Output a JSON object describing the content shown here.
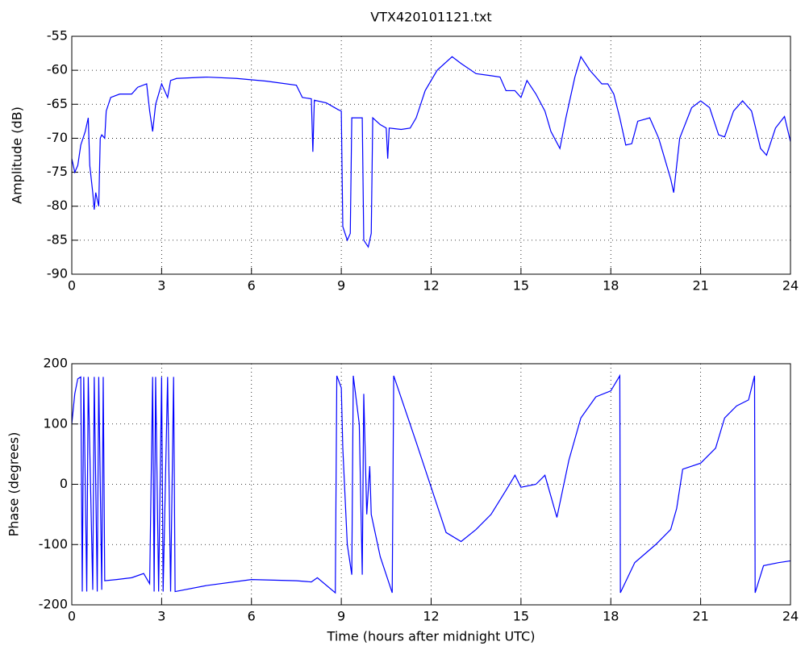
{
  "chart_data": [
    {
      "type": "line",
      "title": "VTX420101121.txt",
      "y_label": "Amplitude (dB)",
      "color": "#0000ff",
      "grid": true,
      "xlim": [
        0,
        24
      ],
      "xticks": [
        0,
        3,
        6,
        9,
        12,
        15,
        18,
        21,
        24
      ],
      "ylim": [
        -90,
        -55
      ],
      "yticks": [
        -90,
        -85,
        -80,
        -75,
        -70,
        -65,
        -60,
        -55
      ],
      "x": [
        0,
        0.1,
        0.2,
        0.3,
        0.45,
        0.55,
        0.6,
        0.7,
        0.75,
        0.8,
        0.9,
        0.95,
        1.0,
        1.1,
        1.15,
        1.3,
        1.6,
        2.0,
        2.2,
        2.5,
        2.6,
        2.7,
        2.8,
        3.0,
        3.2,
        3.3,
        3.5,
        4.5,
        5.5,
        6.5,
        7.5,
        7.7,
        8.0,
        8.05,
        8.1,
        8.5,
        8.9,
        9.0,
        9.05,
        9.2,
        9.3,
        9.35,
        9.7,
        9.75,
        9.9,
        10.0,
        10.05,
        10.3,
        10.5,
        10.55,
        10.6,
        11.0,
        11.3,
        11.5,
        11.8,
        12.2,
        12.7,
        13.0,
        13.5,
        14.0,
        14.3,
        14.5,
        14.8,
        15.0,
        15.2,
        15.5,
        15.8,
        16.0,
        16.3,
        16.5,
        16.8,
        17.0,
        17.3,
        17.7,
        17.9,
        18.1,
        18.3,
        18.5,
        18.7,
        18.9,
        19.3,
        19.6,
        19.8,
        20.0,
        20.1,
        20.3,
        20.7,
        21.0,
        21.3,
        21.6,
        21.8,
        22.1,
        22.4,
        22.7,
        23.0,
        23.2,
        23.5,
        23.8,
        24.0
      ],
      "values": [
        -73,
        -75,
        -74,
        -71,
        -69,
        -67,
        -74,
        -78,
        -80.5,
        -78,
        -80,
        -70,
        -69.5,
        -70,
        -66,
        -64,
        -63.5,
        -63.5,
        -62.5,
        -62,
        -66,
        -69,
        -65,
        -62,
        -64,
        -61.5,
        -61.2,
        -61,
        -61.2,
        -61.6,
        -62.2,
        -64,
        -64.2,
        -72,
        -64.4,
        -64.8,
        -65.8,
        -66,
        -83,
        -85,
        -84,
        -67,
        -67,
        -85,
        -86,
        -84,
        -67,
        -68,
        -68.5,
        -73,
        -68.5,
        -68.7,
        -68.5,
        -67,
        -63,
        -60,
        -58,
        -59,
        -60.5,
        -60.8,
        -61,
        -63,
        -63,
        -64,
        -61.5,
        -63.5,
        -66,
        -69,
        -71.5,
        -67,
        -61,
        -58,
        -60,
        -62,
        -62,
        -63.5,
        -67,
        -71,
        -70.8,
        -67.5,
        -67,
        -70,
        -73,
        -76,
        -78,
        -70,
        -65.5,
        -64.5,
        -65.5,
        -69.5,
        -69.8,
        -66,
        -64.5,
        -66,
        -71.5,
        -72.5,
        -68.5,
        -66.8,
        -70.5
      ]
    },
    {
      "type": "line",
      "x_label": "Time (hours after midnight UTC)",
      "y_label": "Phase (degrees)",
      "color": "#0000ff",
      "grid": true,
      "xlim": [
        0,
        24
      ],
      "xticks": [
        0,
        3,
        6,
        9,
        12,
        15,
        18,
        21,
        24
      ],
      "ylim": [
        -200,
        200
      ],
      "yticks": [
        -200,
        -100,
        0,
        100,
        200
      ],
      "x": [
        0,
        0.1,
        0.2,
        0.3,
        0.35,
        0.4,
        0.5,
        0.55,
        0.7,
        0.75,
        0.85,
        0.9,
        1.0,
        1.05,
        1.1,
        1.5,
        2.0,
        2.4,
        2.6,
        2.7,
        2.75,
        2.8,
        2.9,
        3.0,
        3.05,
        3.2,
        3.3,
        3.4,
        3.45,
        4.5,
        6.0,
        7.5,
        8.0,
        8.2,
        8.8,
        8.85,
        9.0,
        9.05,
        9.2,
        9.35,
        9.4,
        9.6,
        9.7,
        9.75,
        9.85,
        9.95,
        10.0,
        10.3,
        10.7,
        10.75,
        11.5,
        12.0,
        12.5,
        13.0,
        13.5,
        14.0,
        14.5,
        14.8,
        15.0,
        15.5,
        15.8,
        16.0,
        16.2,
        16.6,
        17.0,
        17.5,
        18.0,
        18.3,
        18.32,
        18.8,
        19.5,
        20.0,
        20.2,
        20.4,
        21.0,
        21.5,
        21.8,
        22.2,
        22.6,
        22.8,
        22.82,
        23.1,
        23.6,
        24.0
      ],
      "values": [
        100,
        150,
        175,
        178,
        -178,
        178,
        -178,
        178,
        -175,
        178,
        -178,
        178,
        -175,
        178,
        -160,
        -158,
        -155,
        -148,
        -165,
        178,
        -178,
        178,
        -178,
        178,
        -178,
        178,
        -178,
        178,
        -178,
        -168,
        -158,
        -160,
        -162,
        -155,
        -180,
        180,
        160,
        60,
        -100,
        -150,
        180,
        100,
        -150,
        150,
        -50,
        30,
        -50,
        -120,
        -180,
        180,
        70,
        -5,
        -80,
        -95,
        -75,
        -50,
        -10,
        15,
        -5,
        0,
        15,
        -20,
        -55,
        40,
        110,
        145,
        155,
        180,
        -180,
        -130,
        -100,
        -75,
        -40,
        25,
        35,
        60,
        110,
        130,
        140,
        180,
        -180,
        -135,
        -130,
        -127
      ]
    }
  ]
}
